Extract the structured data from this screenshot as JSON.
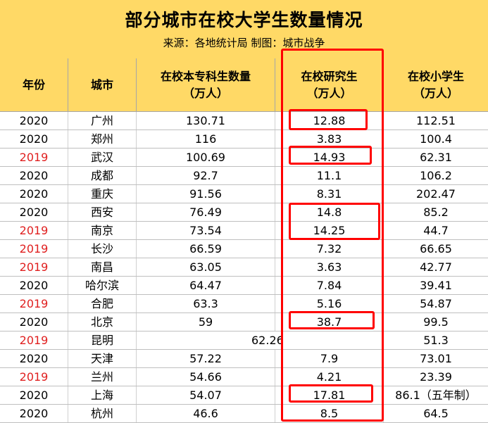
{
  "title": "部分城市在校大学生数量情况",
  "subtitle": "来源：各地统计局   制图：城市战争",
  "headers": [
    {
      "line1": "年份",
      "line2": ""
    },
    {
      "line1": "城市",
      "line2": ""
    },
    {
      "line1": "在校本专科生数量",
      "line2": "（万人）"
    },
    {
      "line1": "在校研究生",
      "line2": "（万人）"
    },
    {
      "line1": "在校小学生",
      "line2": "（万人）"
    }
  ],
  "rows": [
    {
      "year": "2020",
      "city": "广州",
      "undergrad": "130.71",
      "grad": "12.88",
      "primary": "112.51"
    },
    {
      "year": "2020",
      "city": "郑州",
      "undergrad": "116",
      "grad": "3.83",
      "primary": "100.4"
    },
    {
      "year": "2019",
      "city": "武汉",
      "undergrad": "100.69",
      "grad": "14.93",
      "primary": "62.31"
    },
    {
      "year": "2020",
      "city": "成都",
      "undergrad": "92.7",
      "grad": "11.1",
      "primary": "106.2"
    },
    {
      "year": "2020",
      "city": "重庆",
      "undergrad": "91.56",
      "grad": "8.31",
      "primary": "202.47"
    },
    {
      "year": "2020",
      "city": "西安",
      "undergrad": "76.49",
      "grad": "14.8",
      "primary": "85.2"
    },
    {
      "year": "2019",
      "city": "南京",
      "undergrad": "73.54",
      "grad": "14.25",
      "primary": "44.7"
    },
    {
      "year": "2019",
      "city": "长沙",
      "undergrad": "66.59",
      "grad": "7.32",
      "primary": "66.65"
    },
    {
      "year": "2019",
      "city": "南昌",
      "undergrad": "63.05",
      "grad": "3.63",
      "primary": "42.77"
    },
    {
      "year": "2020",
      "city": "哈尔滨",
      "undergrad": "64.47",
      "grad": "7.84",
      "primary": "39.41"
    },
    {
      "year": "2019",
      "city": "合肥",
      "undergrad": "63.3",
      "grad": "5.16",
      "primary": "54.87"
    },
    {
      "year": "2020",
      "city": "北京",
      "undergrad": "59",
      "grad": "38.7",
      "primary": "99.5"
    },
    {
      "year": "2019",
      "city": "昆明",
      "merged": "62.26",
      "primary": "51.3"
    },
    {
      "year": "2020",
      "city": "天津",
      "undergrad": "57.22",
      "grad": "7.9",
      "primary": "73.01"
    },
    {
      "year": "2019",
      "city": "兰州",
      "undergrad": "54.66",
      "grad": "4.21",
      "primary": "23.39"
    },
    {
      "year": "2020",
      "city": "上海",
      "undergrad": "54.07",
      "grad": "17.81",
      "primary": "86.1（五年制）"
    },
    {
      "year": "2020",
      "city": "杭州",
      "undergrad": "46.6",
      "grad": "8.5",
      "primary": "64.5"
    }
  ],
  "colors": {
    "header_bg": "#ffd966",
    "year_2019": "#e02020",
    "highlight": "#ff0000"
  }
}
